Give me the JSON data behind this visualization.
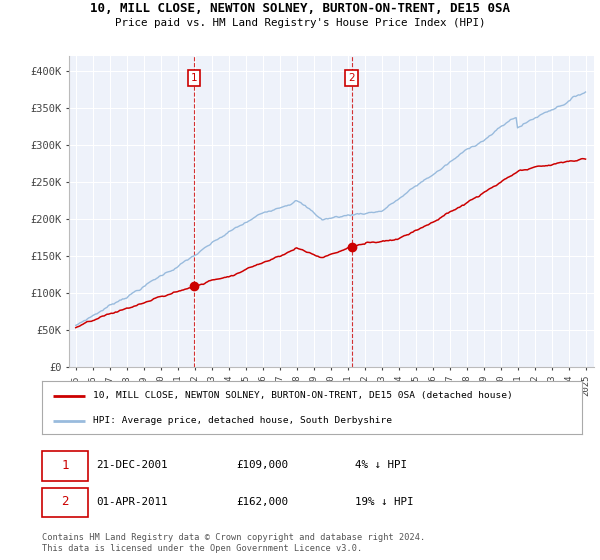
{
  "title_line1": "10, MILL CLOSE, NEWTON SOLNEY, BURTON-ON-TRENT, DE15 0SA",
  "title_line2": "Price paid vs. HM Land Registry's House Price Index (HPI)",
  "ylim": [
    0,
    420000
  ],
  "yticks": [
    0,
    50000,
    100000,
    150000,
    200000,
    250000,
    300000,
    350000,
    400000
  ],
  "ytick_labels": [
    "£0",
    "£50K",
    "£100K",
    "£150K",
    "£200K",
    "£250K",
    "£300K",
    "£350K",
    "£400K"
  ],
  "sale1_price": 109000,
  "sale1_date_str": "21-DEC-2001",
  "sale1_year": 2001.96,
  "sale1_pct": "4% ↓ HPI",
  "sale2_price": 162000,
  "sale2_date_str": "01-APR-2011",
  "sale2_year": 2011.25,
  "sale2_pct": "19% ↓ HPI",
  "legend_line1": "10, MILL CLOSE, NEWTON SOLNEY, BURTON-ON-TRENT, DE15 0SA (detached house)",
  "legend_line2": "HPI: Average price, detached house, South Derbyshire",
  "footer": "Contains HM Land Registry data © Crown copyright and database right 2024.\nThis data is licensed under the Open Government Licence v3.0.",
  "line1_color": "#cc0000",
  "line2_color": "#99bbdd",
  "background_color": "#eef2fa"
}
